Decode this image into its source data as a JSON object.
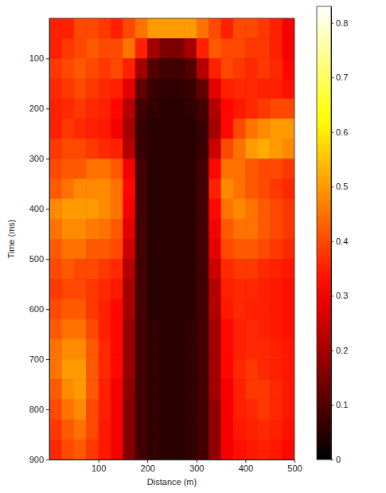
{
  "chart_data": {
    "type": "heatmap",
    "x_label": "Distance (m)",
    "y_label": "Time (ms)",
    "xlim": [
      0,
      500
    ],
    "ylim": [
      20,
      900
    ],
    "xticks": [
      100,
      200,
      300,
      400,
      500
    ],
    "yticks": [
      100,
      200,
      300,
      400,
      500,
      600,
      700,
      800,
      900
    ],
    "color": "hot",
    "x": [
      12.5,
      37.5,
      62.5,
      87.5,
      112.5,
      137.5,
      162.5,
      187.5,
      212.5,
      237.5,
      262.5,
      287.5,
      312.5,
      337.5,
      362.5,
      387.5,
      412.5,
      437.5,
      462.5,
      487.5
    ],
    "y": [
      40,
      80,
      120,
      160,
      200,
      240,
      280,
      320,
      360,
      400,
      440,
      480,
      520,
      560,
      600,
      640,
      680,
      720,
      760,
      800,
      840,
      880
    ],
    "z": [
      [
        0.35,
        0.35,
        0.4,
        0.4,
        0.38,
        0.35,
        0.4,
        0.45,
        0.5,
        0.5,
        0.5,
        0.5,
        0.45,
        0.4,
        0.35,
        0.4,
        0.4,
        0.38,
        0.35,
        0.3
      ],
      [
        0.35,
        0.38,
        0.4,
        0.42,
        0.4,
        0.4,
        0.45,
        0.35,
        0.2,
        0.15,
        0.15,
        0.2,
        0.35,
        0.42,
        0.4,
        0.4,
        0.38,
        0.38,
        0.35,
        0.3
      ],
      [
        0.38,
        0.4,
        0.42,
        0.4,
        0.38,
        0.4,
        0.35,
        0.2,
        0.1,
        0.08,
        0.08,
        0.1,
        0.22,
        0.35,
        0.4,
        0.38,
        0.36,
        0.38,
        0.36,
        0.32
      ],
      [
        0.36,
        0.38,
        0.4,
        0.38,
        0.36,
        0.35,
        0.28,
        0.12,
        0.07,
        0.06,
        0.06,
        0.07,
        0.12,
        0.28,
        0.35,
        0.36,
        0.36,
        0.35,
        0.35,
        0.33
      ],
      [
        0.35,
        0.36,
        0.38,
        0.36,
        0.35,
        0.32,
        0.22,
        0.08,
        0.06,
        0.05,
        0.05,
        0.06,
        0.08,
        0.22,
        0.32,
        0.34,
        0.36,
        0.38,
        0.4,
        0.4
      ],
      [
        0.35,
        0.38,
        0.36,
        0.35,
        0.34,
        0.3,
        0.2,
        0.07,
        0.05,
        0.05,
        0.05,
        0.05,
        0.07,
        0.2,
        0.32,
        0.4,
        0.45,
        0.48,
        0.5,
        0.5
      ],
      [
        0.38,
        0.4,
        0.4,
        0.38,
        0.36,
        0.35,
        0.22,
        0.07,
        0.05,
        0.05,
        0.05,
        0.05,
        0.07,
        0.25,
        0.4,
        0.45,
        0.5,
        0.52,
        0.5,
        0.48
      ],
      [
        0.4,
        0.42,
        0.42,
        0.45,
        0.45,
        0.42,
        0.3,
        0.08,
        0.05,
        0.05,
        0.05,
        0.05,
        0.08,
        0.32,
        0.45,
        0.45,
        0.42,
        0.4,
        0.4,
        0.38
      ],
      [
        0.42,
        0.45,
        0.48,
        0.48,
        0.48,
        0.45,
        0.32,
        0.08,
        0.05,
        0.05,
        0.05,
        0.05,
        0.08,
        0.35,
        0.48,
        0.45,
        0.42,
        0.4,
        0.38,
        0.36
      ],
      [
        0.48,
        0.5,
        0.5,
        0.5,
        0.48,
        0.45,
        0.3,
        0.08,
        0.05,
        0.05,
        0.05,
        0.05,
        0.08,
        0.32,
        0.45,
        0.48,
        0.45,
        0.42,
        0.4,
        0.38
      ],
      [
        0.45,
        0.48,
        0.48,
        0.46,
        0.45,
        0.42,
        0.28,
        0.08,
        0.05,
        0.05,
        0.05,
        0.05,
        0.08,
        0.3,
        0.42,
        0.45,
        0.45,
        0.42,
        0.4,
        0.38
      ],
      [
        0.42,
        0.45,
        0.45,
        0.42,
        0.42,
        0.4,
        0.25,
        0.08,
        0.05,
        0.05,
        0.05,
        0.05,
        0.08,
        0.28,
        0.4,
        0.42,
        0.42,
        0.4,
        0.38,
        0.36
      ],
      [
        0.4,
        0.42,
        0.4,
        0.4,
        0.38,
        0.36,
        0.22,
        0.08,
        0.05,
        0.05,
        0.05,
        0.05,
        0.08,
        0.25,
        0.36,
        0.38,
        0.38,
        0.36,
        0.35,
        0.34
      ],
      [
        0.38,
        0.4,
        0.4,
        0.38,
        0.36,
        0.34,
        0.2,
        0.08,
        0.05,
        0.05,
        0.05,
        0.05,
        0.08,
        0.22,
        0.35,
        0.36,
        0.36,
        0.35,
        0.34,
        0.33
      ],
      [
        0.4,
        0.42,
        0.42,
        0.38,
        0.35,
        0.32,
        0.2,
        0.08,
        0.05,
        0.05,
        0.05,
        0.05,
        0.08,
        0.22,
        0.34,
        0.36,
        0.35,
        0.35,
        0.34,
        0.33
      ],
      [
        0.42,
        0.45,
        0.45,
        0.4,
        0.35,
        0.32,
        0.18,
        0.08,
        0.06,
        0.05,
        0.05,
        0.06,
        0.08,
        0.2,
        0.32,
        0.35,
        0.36,
        0.35,
        0.34,
        0.33
      ],
      [
        0.45,
        0.48,
        0.48,
        0.42,
        0.36,
        0.32,
        0.18,
        0.08,
        0.06,
        0.05,
        0.05,
        0.06,
        0.08,
        0.2,
        0.32,
        0.35,
        0.36,
        0.36,
        0.35,
        0.34
      ],
      [
        0.45,
        0.5,
        0.5,
        0.42,
        0.36,
        0.32,
        0.18,
        0.08,
        0.06,
        0.05,
        0.05,
        0.06,
        0.08,
        0.2,
        0.32,
        0.36,
        0.38,
        0.36,
        0.35,
        0.34
      ],
      [
        0.42,
        0.48,
        0.5,
        0.42,
        0.35,
        0.3,
        0.17,
        0.08,
        0.06,
        0.05,
        0.05,
        0.06,
        0.08,
        0.2,
        0.3,
        0.35,
        0.38,
        0.38,
        0.36,
        0.34
      ],
      [
        0.4,
        0.45,
        0.48,
        0.4,
        0.35,
        0.3,
        0.16,
        0.08,
        0.06,
        0.05,
        0.05,
        0.06,
        0.08,
        0.18,
        0.3,
        0.35,
        0.36,
        0.38,
        0.36,
        0.34
      ],
      [
        0.38,
        0.42,
        0.45,
        0.4,
        0.34,
        0.3,
        0.16,
        0.08,
        0.06,
        0.05,
        0.05,
        0.06,
        0.08,
        0.18,
        0.3,
        0.34,
        0.35,
        0.36,
        0.35,
        0.33
      ],
      [
        0.36,
        0.4,
        0.42,
        0.38,
        0.34,
        0.3,
        0.16,
        0.08,
        0.06,
        0.05,
        0.05,
        0.06,
        0.08,
        0.18,
        0.3,
        0.33,
        0.34,
        0.35,
        0.34,
        0.32
      ]
    ],
    "colorbar": {
      "range": [
        0,
        0.83
      ],
      "ticks": [
        0,
        0.1,
        0.2,
        0.3,
        0.4,
        0.5,
        0.6,
        0.7,
        0.8
      ]
    }
  }
}
